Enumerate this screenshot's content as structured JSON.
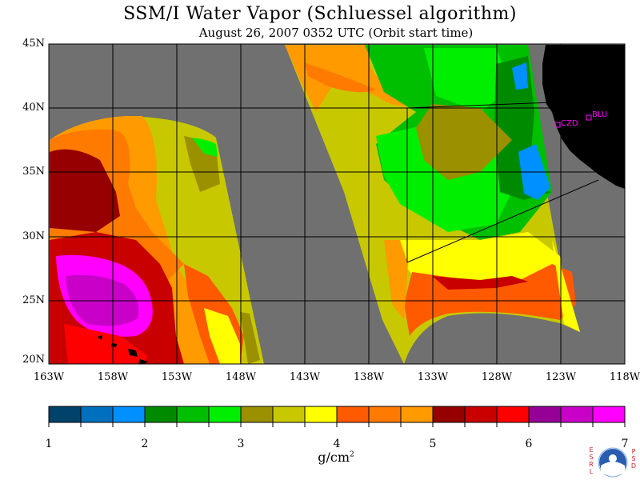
{
  "title": "SSM/I Water Vapor (Schluessel algorithm)",
  "subtitle": "August 26, 2007  0352 UTC  (Orbit start time)",
  "lat_labels": [
    "45N",
    "40N",
    "35N",
    "30N",
    "25N",
    "20N"
  ],
  "lon_labels": [
    "163W",
    "158W",
    "153W",
    "148W",
    "143W",
    "138W",
    "133W",
    "128W",
    "123W",
    "118W"
  ],
  "stations": [
    {
      "name": "CZD"
    },
    {
      "name": "BLU"
    }
  ],
  "colorbar": {
    "ticks": [
      "1",
      "2",
      "3",
      "4",
      "5",
      "6",
      "7"
    ],
    "unit": "g/cm",
    "unit_exp": "2",
    "colors": [
      "#00426a",
      "#0070be",
      "#0090ff",
      "#008a00",
      "#00be00",
      "#00ee00",
      "#9a9000",
      "#c8c800",
      "#ffff00",
      "#ff5a00",
      "#ff7a00",
      "#ff9a00",
      "#960000",
      "#c80000",
      "#ff0000",
      "#960096",
      "#c800c8",
      "#ff00ff"
    ]
  },
  "palette": {
    "no_data": "#707070",
    "land": "#000000",
    "station": "#ff00ff"
  },
  "logo": {
    "left": "ESRL",
    "right": "PSD",
    "center": "NOAA"
  }
}
